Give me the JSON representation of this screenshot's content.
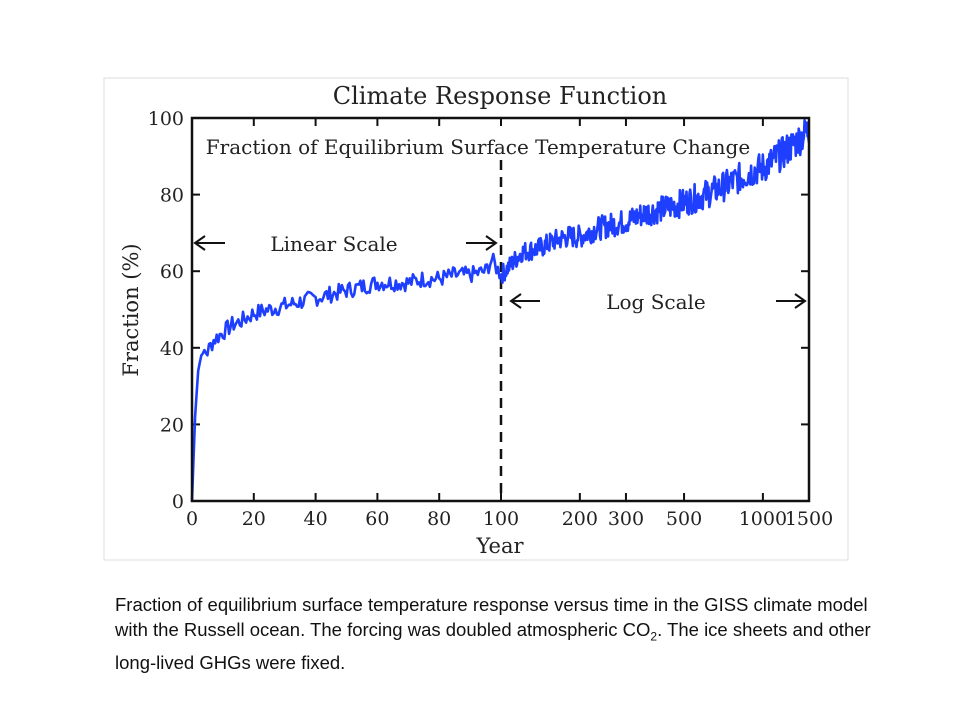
{
  "chart_data": {
    "type": "line",
    "title": "Climate Response Function",
    "subtitle": "Fraction of Equilibrium Surface Temperature Change",
    "xlabel": "Year",
    "ylabel": "Fraction (%)",
    "xlim": [
      0,
      1500
    ],
    "ylim": [
      0,
      100
    ],
    "x_scale": "linear 0–100, log 100–1500",
    "x_ticks": [
      "0",
      "20",
      "40",
      "60",
      "80",
      "100",
      "200",
      "300",
      "500",
      "1000",
      "1500"
    ],
    "y_ticks": [
      "0",
      "20",
      "40",
      "60",
      "80",
      "100"
    ],
    "grid": false,
    "divider_year": 100,
    "annotations": {
      "linear": "Linear Scale",
      "log": "Log Scale"
    },
    "series": [
      {
        "color": "#1f3fff",
        "x": [
          0,
          1,
          2,
          3,
          4,
          5,
          7,
          10,
          13,
          16,
          20,
          25,
          30,
          35,
          40,
          45,
          50,
          55,
          60,
          65,
          70,
          75,
          80,
          85,
          90,
          95,
          97,
          100,
          110,
          120,
          140,
          160,
          180,
          200,
          230,
          260,
          300,
          350,
          400,
          450,
          500,
          600,
          700,
          800,
          900,
          1000,
          1100,
          1200,
          1300,
          1400,
          1500
        ],
        "y": [
          0,
          22,
          34,
          38,
          39,
          39,
          42,
          44,
          46,
          47,
          49,
          50,
          51,
          52,
          53,
          54,
          55,
          56,
          57,
          57,
          57,
          58,
          58,
          59,
          59,
          60,
          63,
          59,
          62,
          65,
          66,
          68,
          69,
          69,
          71,
          72,
          73,
          75,
          76,
          77,
          78,
          80,
          82,
          84,
          86,
          87,
          89,
          91,
          93,
          95,
          97
        ]
      }
    ]
  },
  "caption": {
    "text_1": "Fraction of equilibrium surface temperature response versus time in the GISS climate model with the Russell ocean.  The forcing was doubled atmospheric CO",
    "sub": "2",
    "text_2": ".  The ice sheets and other long-lived GHGs were fixed."
  }
}
